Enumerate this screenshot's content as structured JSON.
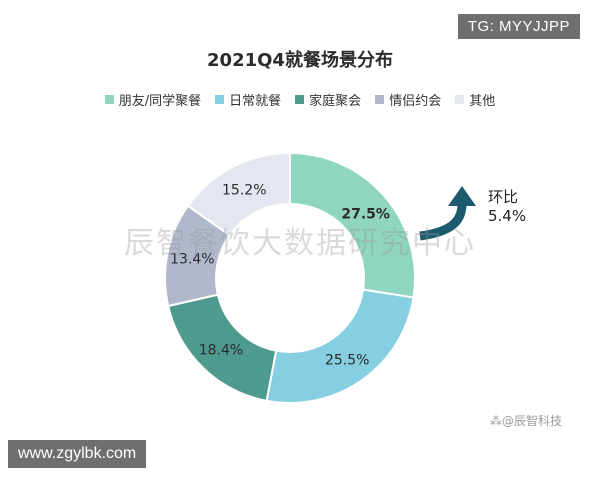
{
  "badges": {
    "tg": "TG: MYYJJPP",
    "url": "www.zgylbk.com",
    "weibo": "⁂@辰智科技"
  },
  "watermark": "辰智餐饮大数据研究中心",
  "chart_data": {
    "type": "pie",
    "title": "2021Q4就餐场景分布",
    "legend_position": "top",
    "series": [
      {
        "name": "朋友/同学聚餐",
        "value": 27.5,
        "label": "27.5%",
        "color": "#8fd5c0"
      },
      {
        "name": "日常就餐",
        "value": 25.5,
        "label": "25.5%",
        "color": "#86cfe3"
      },
      {
        "name": "家庭聚会",
        "value": 18.4,
        "label": "18.4%",
        "color": "#4f9a8e"
      },
      {
        "name": "情侣约会",
        "value": 13.4,
        "label": "13.4%",
        "color": "#b1b8cc"
      },
      {
        "name": "其他",
        "value": 15.2,
        "label": "15.2%",
        "color": "#e4e7f0"
      }
    ],
    "annotation": {
      "line1": "环比",
      "line2": "5.4%",
      "arrow_color": "#1e5a6e"
    }
  }
}
